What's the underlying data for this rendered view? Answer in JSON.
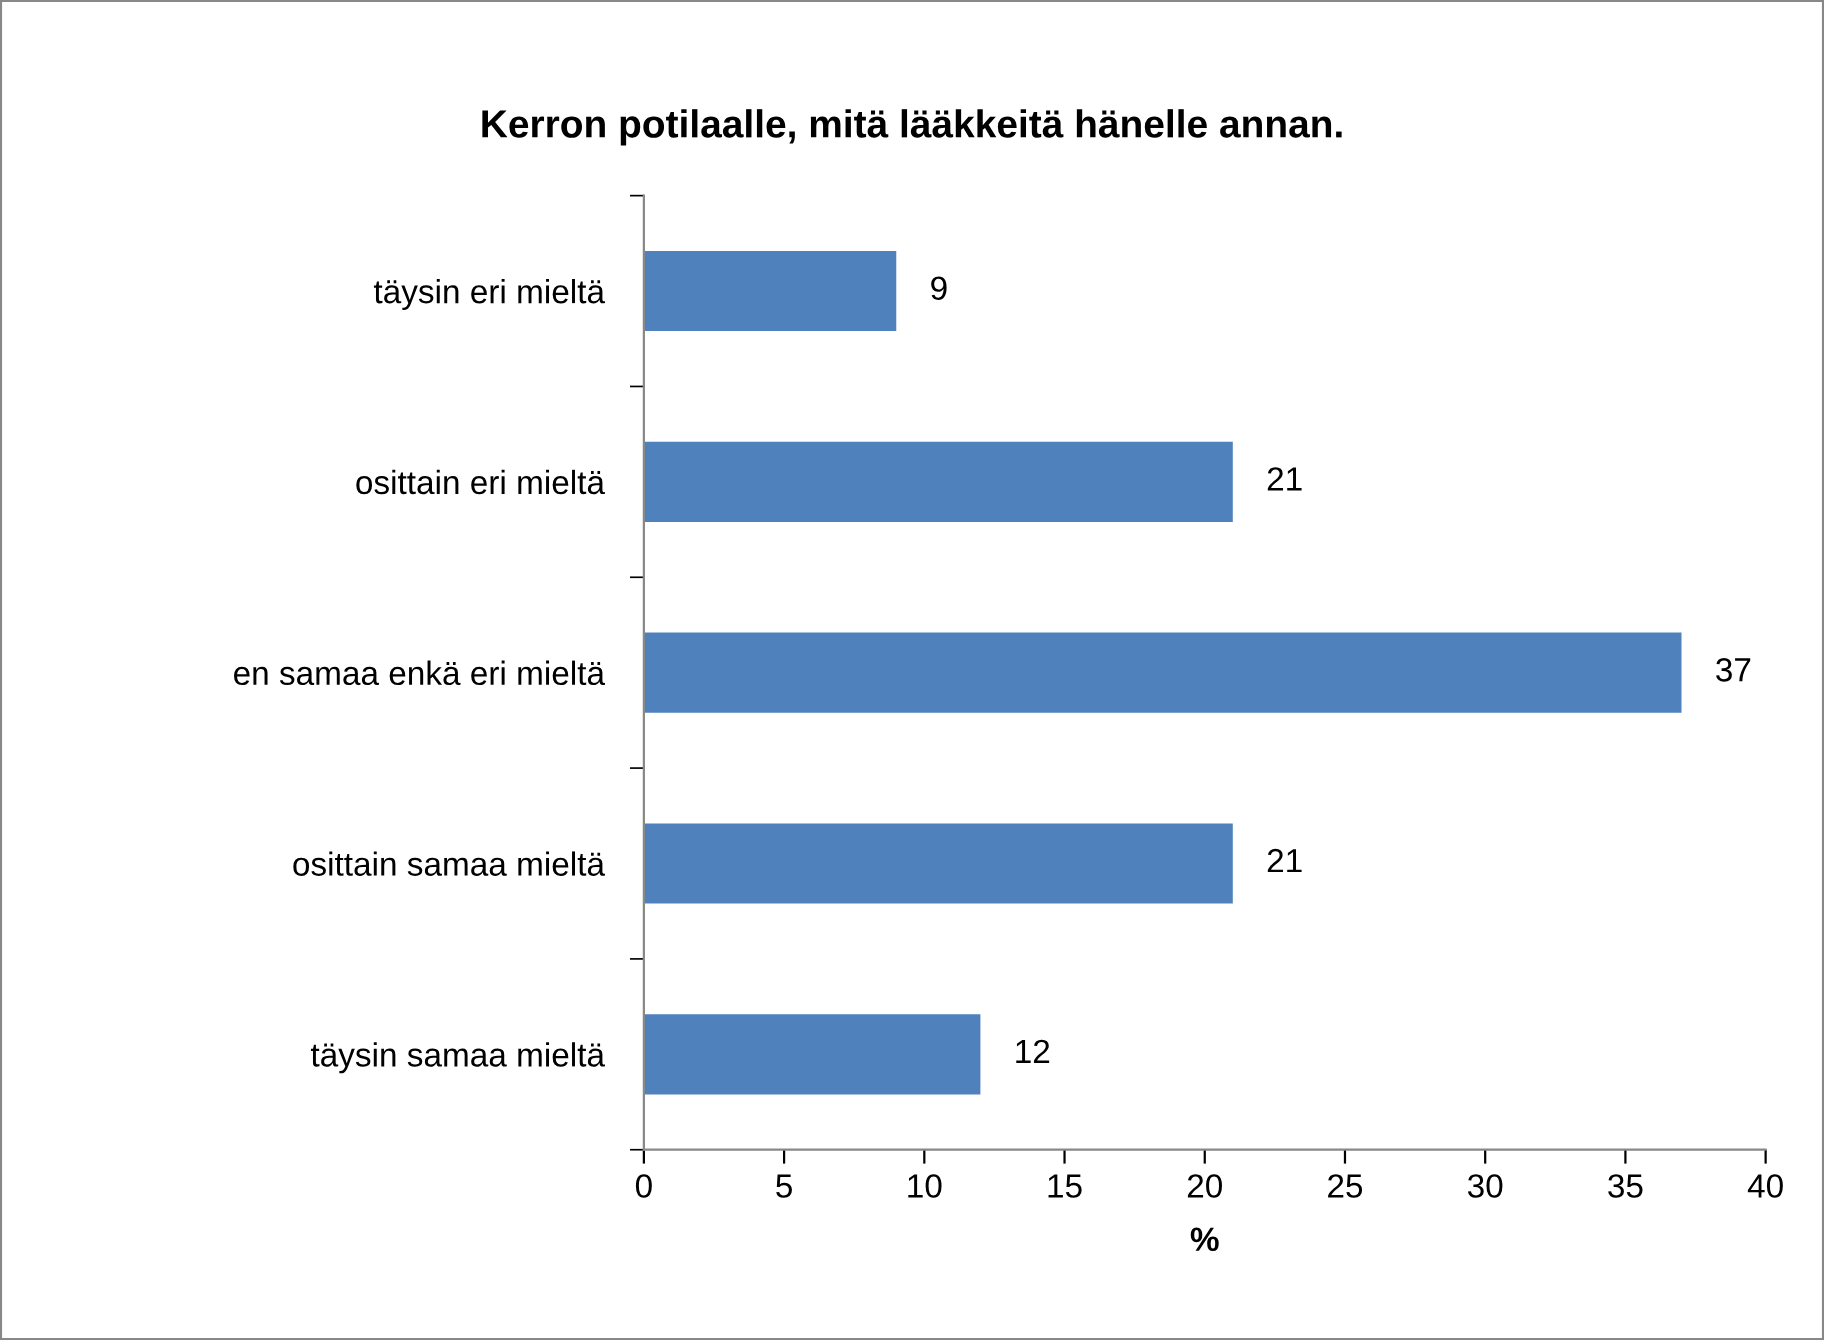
{
  "chart_data": {
    "type": "bar",
    "orientation": "horizontal",
    "title": "Kerron potilaalle, mitä lääkkeitä hänelle annan.",
    "xlabel": "%",
    "categories": [
      "täysin eri mieltä",
      "osittain eri mieltä",
      "en samaa enkä eri mieltä",
      "osittain samaa mieltä",
      "täysin samaa mieltä"
    ],
    "values": [
      9,
      21,
      37,
      21,
      12
    ],
    "color": "#4f81bd",
    "data_labels": true,
    "xlim": [
      0,
      40
    ],
    "xticks": [
      0,
      5,
      10,
      15,
      20,
      25,
      30,
      35,
      40
    ],
    "grid": false,
    "legend": false
  }
}
